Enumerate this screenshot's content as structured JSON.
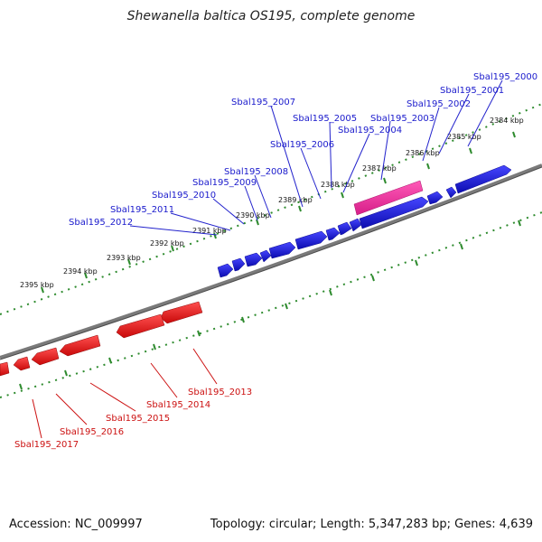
{
  "title": "Shewanella baltica OS195, complete genome",
  "accession": "Accession: NC_009997",
  "summary": "Topology: circular; Length: 5,347,283 bp; Genes: 4,639",
  "colors": {
    "forward_gene": "#1a1acc",
    "forward_gene_light": "#3a3aff",
    "reverse_gene": "#e81010",
    "reverse_gene_light": "#ff4646",
    "highlight_gene": "#ee2fa0",
    "backbone": "#7a7a7a",
    "tick": "#2e8b2e",
    "forward_label": "#1a1acc",
    "reverse_label": "#cc1111"
  },
  "scale_labels": [
    "2384 kbp",
    "2385 kbp",
    "2386 kbp",
    "2387 kbp",
    "2388 kbp",
    "2389 kbp",
    "2390 kbp",
    "2391 kbp",
    "2392 kbp",
    "2393 kbp",
    "2394 kbp",
    "2395 kbp"
  ],
  "forward_genes": [
    "Sbal195_2000",
    "Sbal195_2001",
    "Sbal195_2002",
    "Sbal195_2003",
    "Sbal195_2004",
    "Sbal195_2005",
    "Sbal195_2006",
    "Sbal195_2007",
    "Sbal195_2008",
    "Sbal195_2009",
    "Sbal195_2010",
    "Sbal195_2011",
    "Sbal195_2012"
  ],
  "reverse_genes": [
    "Sbal195_2013",
    "Sbal195_2014",
    "Sbal195_2015",
    "Sbal195_2016",
    "Sbal195_2017"
  ]
}
